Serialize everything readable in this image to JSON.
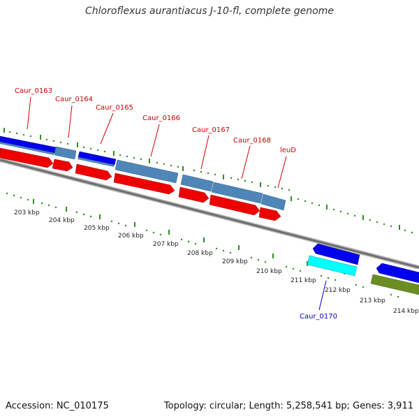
{
  "title": "Chloroflexus aurantiacus J-10-fl, complete genome",
  "footer": {
    "accession": "Accession: NC_010175",
    "summary": "Topology: circular; Length: 5,258,541 bp; Genes: 3,911"
  },
  "colors": {
    "background": "#ffffff",
    "backbone": "#808080",
    "tick": "#2e8b22",
    "label_red": "#cc0000",
    "label_blue": "#0000cc",
    "gene_blue": "#0000ee",
    "gene_steel": "#4f86b8",
    "gene_red": "#ee0000",
    "gene_cyan": "#00ffff",
    "gene_olive": "#6b8e23"
  },
  "kbp_labels": [
    "203 kbp",
    "204 kbp",
    "205 kbp",
    "206 kbp",
    "207 kbp",
    "208 kbp",
    "209 kbp",
    "210 kbp",
    "211 kbp",
    "212 kbp",
    "213 kbp",
    "214 kbp"
  ],
  "gene_labels": [
    {
      "text": "Caur_0163",
      "color": "red"
    },
    {
      "text": "Caur_0164",
      "color": "red"
    },
    {
      "text": "Caur_0165",
      "color": "red"
    },
    {
      "text": "Caur_0166",
      "color": "red"
    },
    {
      "text": "Caur_0167",
      "color": "red"
    },
    {
      "text": "Caur_0168",
      "color": "red"
    },
    {
      "text": "leuD",
      "color": "red"
    },
    {
      "text": "Caur_0170",
      "color": "blue"
    }
  ]
}
